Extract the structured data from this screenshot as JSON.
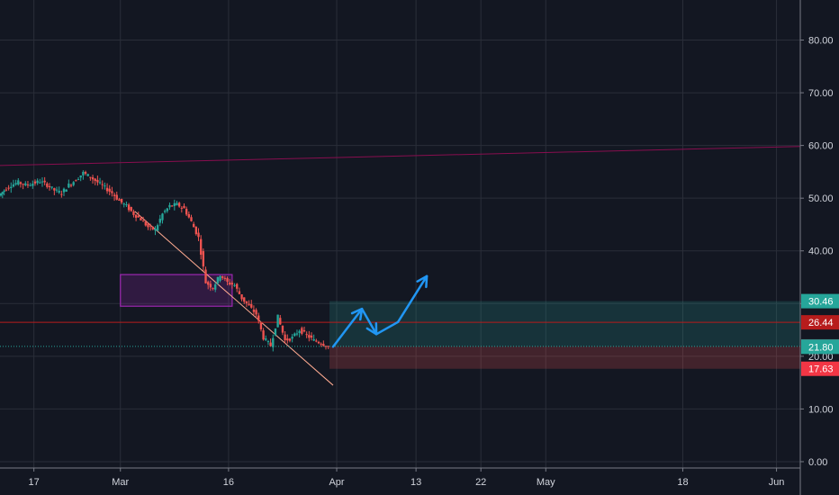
{
  "chart_data": {
    "type": "line",
    "y_axis": {
      "ticks": [
        0,
        10,
        20,
        30,
        40,
        50,
        60,
        70,
        80
      ],
      "tick_labels": [
        "0.00",
        "10.00",
        "20.00",
        "30.00",
        "40.00",
        "50.00",
        "60.00",
        "70.00",
        "80.00"
      ],
      "range": [
        -1.2,
        87.6
      ],
      "position": "right"
    },
    "x_axis": {
      "tick_labels": [
        "17",
        "Mar",
        "16",
        "Apr",
        "13",
        "22",
        "May",
        "18",
        "Jun"
      ],
      "tick_days": [
        0,
        12,
        27,
        42,
        53,
        62,
        71,
        90,
        103
      ],
      "range": [
        -4.7,
        106.3
      ],
      "note": "day index: 0 = the date labeled 17"
    },
    "grid": true,
    "series": [
      {
        "style": "candles",
        "x": [
          -4.7,
          -4,
          -3,
          -2,
          -1,
          0,
          1,
          2,
          3,
          4,
          5,
          6,
          7,
          8,
          9,
          10,
          11,
          12,
          13,
          14,
          15,
          16,
          17,
          18,
          19,
          20,
          21,
          22,
          23,
          24,
          25,
          26,
          27,
          28,
          29,
          30,
          31,
          32,
          33,
          34,
          35,
          36,
          37,
          38,
          39,
          40,
          41
        ],
        "close": [
          50.5,
          51.5,
          52.5,
          53.0,
          52.5,
          52.8,
          53.2,
          52.5,
          51.5,
          51.0,
          52.5,
          53.5,
          54.8,
          54.0,
          53.0,
          52.0,
          51.0,
          49.5,
          48.5,
          47.0,
          46.0,
          44.5,
          44.0,
          47.0,
          48.5,
          48.8,
          48.0,
          45.5,
          42.5,
          34.0,
          33.0,
          35.5,
          34.0,
          33.5,
          31.0,
          29.5,
          28.0,
          23.5,
          22.0,
          27.5,
          23.0,
          23.5,
          25.0,
          24.0,
          23.0,
          22.5,
          21.87
        ],
        "up_color": "#26a69a",
        "down_color": "#ef5350"
      }
    ],
    "price_tags": [
      {
        "value": 30.46,
        "label": "30.46",
        "color": "#26a69a"
      },
      {
        "value": 26.44,
        "label": "26.44",
        "color": "#b71c1c"
      },
      {
        "value": 21.87,
        "label": "21.87",
        "color": "#5d606b"
      },
      {
        "value": 21.8,
        "label": "21.80",
        "color": "#26a69a"
      },
      {
        "value": 17.63,
        "label": "17.63",
        "color": "#f23645"
      }
    ],
    "annotations": [
      {
        "kind": "trendline",
        "from": [
          -4.7,
          56.2
        ],
        "to": [
          106.3,
          59.8
        ],
        "color": "#880e4f"
      },
      {
        "kind": "trendline",
        "from": [
          14,
          47.5
        ],
        "to": [
          41.5,
          14.5
        ],
        "color": "#ffab91"
      },
      {
        "kind": "horizontal-line",
        "value": 26.44,
        "color": "#b71c1c"
      },
      {
        "kind": "horizontal-line",
        "value": 21.87,
        "color": "#26a69a",
        "dashed": true
      },
      {
        "kind": "zone",
        "x": [
          12,
          27.5
        ],
        "y": [
          29.5,
          35.5
        ],
        "color": "#9c27b0"
      },
      {
        "kind": "position-profit",
        "x": [
          41,
          106.3
        ],
        "y": [
          21.87,
          30.46
        ],
        "color": "#26a69a"
      },
      {
        "kind": "position-loss",
        "x": [
          41,
          106.3
        ],
        "y": [
          17.63,
          21.87
        ],
        "color": "#ef5350"
      },
      {
        "kind": "projection-arrow",
        "points": [
          [
            41.5,
            21.8
          ],
          [
            45.5,
            29.0
          ],
          [
            47.5,
            24.2
          ],
          [
            50.5,
            26.5
          ],
          [
            54.5,
            35.2
          ]
        ],
        "color": "#2196f3"
      }
    ]
  },
  "colors": {
    "background": "#131722",
    "grid": "#2a2e39",
    "axis_text": "#d1d4dc"
  }
}
